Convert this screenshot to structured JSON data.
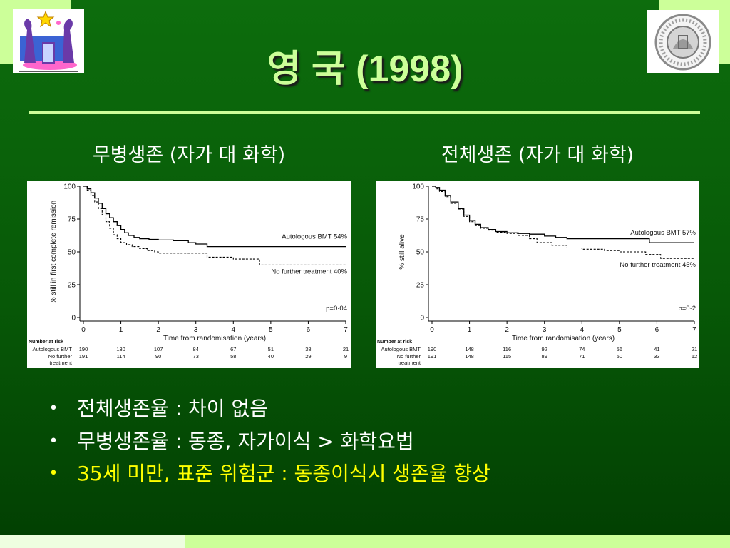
{
  "slide": {
    "title": "영 국 (1998)",
    "bullet_glyph": "•",
    "bullets": [
      {
        "text": "전체생존율 : 차이 없음",
        "color": "#ffffff"
      },
      {
        "text": "무병생존율 : 동종, 자가이식 > 화학요법",
        "color": "#ffffff"
      },
      {
        "text": "35세 미만, 표준 위험군 : 동종이식시 생존율 향상",
        "color": "#ffff00"
      }
    ]
  },
  "colors": {
    "accent": "#ccff99",
    "highlight": "#ffff00",
    "text": "#ffffff",
    "background_top": "#0d6d0d",
    "background_bottom": "#023f02"
  },
  "logos": {
    "left_icon": "mascot-logo",
    "right_icon": "circular-seal-logo"
  },
  "chart_data": [
    {
      "type": "line",
      "step": true,
      "grid": false,
      "legend_position": "right",
      "title": "무병생존 (자가 대 화학)",
      "ylabel": "% still in first complete remission",
      "xlabel": "Time from randomisation (years)",
      "xlim": [
        0,
        7
      ],
      "ylim": [
        0,
        100
      ],
      "xticks": [
        0,
        1,
        2,
        3,
        4,
        5,
        6,
        7
      ],
      "yticks": [
        0,
        25,
        50,
        75,
        100
      ],
      "annotation": "p=0·04",
      "series": [
        {
          "name": "Autologous BMT 54%",
          "dashed": false,
          "x": [
            0,
            0.1,
            0.2,
            0.3,
            0.4,
            0.5,
            0.6,
            0.7,
            0.8,
            0.9,
            1.0,
            1.1,
            1.2,
            1.35,
            1.5,
            1.75,
            2.0,
            2.4,
            2.8,
            3.0,
            3.3,
            7
          ],
          "y": [
            100,
            98,
            95,
            91,
            87,
            83,
            79,
            76,
            73,
            70,
            67,
            64.5,
            62.5,
            61,
            60,
            59.5,
            59,
            58.5,
            57,
            56,
            54,
            54
          ]
        },
        {
          "name": "No further treatment 40%",
          "dashed": true,
          "x": [
            0,
            0.1,
            0.2,
            0.3,
            0.4,
            0.5,
            0.6,
            0.7,
            0.8,
            0.9,
            1.0,
            1.15,
            1.3,
            1.5,
            1.7,
            1.9,
            2.0,
            3.3,
            4.0,
            4.7,
            7
          ],
          "y": [
            100,
            97,
            93,
            88,
            83,
            78,
            73,
            68,
            63,
            60,
            57,
            55.5,
            54,
            52.5,
            51,
            50,
            49,
            46,
            44.5,
            40,
            40
          ]
        }
      ],
      "risk_table": {
        "heading": "Number at risk",
        "rows": [
          {
            "label": [
              "Autologous BMT"
            ],
            "values": [
              190,
              130,
              107,
              84,
              67,
              51,
              38,
              21
            ]
          },
          {
            "label": [
              "No further",
              "treatment"
            ],
            "values": [
              191,
              114,
              90,
              73,
              58,
              40,
              29,
              9
            ]
          }
        ]
      }
    },
    {
      "type": "line",
      "step": true,
      "grid": false,
      "legend_position": "right",
      "title": "전체생존 (자가 대 화학)",
      "ylabel": "% still alive",
      "xlabel": "Time from randomisation (years)",
      "xlim": [
        0,
        7
      ],
      "ylim": [
        0,
        100
      ],
      "xticks": [
        0,
        1,
        2,
        3,
        4,
        5,
        6,
        7
      ],
      "yticks": [
        0,
        25,
        50,
        75,
        100
      ],
      "annotation": "p=0·2",
      "series": [
        {
          "name": "Autologous BMT 57%",
          "dashed": false,
          "x": [
            0,
            0.1,
            0.2,
            0.35,
            0.5,
            0.7,
            0.85,
            1.0,
            1.15,
            1.3,
            1.5,
            1.7,
            2.0,
            2.3,
            2.6,
            3.0,
            3.3,
            3.6,
            5.8,
            7
          ],
          "y": [
            100,
            99,
            97,
            93,
            88,
            83,
            78,
            74,
            71,
            68.5,
            67,
            65.5,
            64.5,
            64,
            63.5,
            62,
            61,
            60,
            57,
            57
          ]
        },
        {
          "name": "No further treatment 45%",
          "dashed": true,
          "x": [
            0,
            0.1,
            0.2,
            0.35,
            0.5,
            0.7,
            0.85,
            1.0,
            1.15,
            1.3,
            1.5,
            1.7,
            2.0,
            2.3,
            2.6,
            2.8,
            3.2,
            3.6,
            4.0,
            4.6,
            5.0,
            5.7,
            6.1,
            7
          ],
          "y": [
            100,
            98,
            96,
            92,
            87,
            82,
            77,
            73,
            70,
            68,
            66.5,
            65,
            64,
            62.5,
            60,
            57,
            55,
            53,
            52,
            51,
            50,
            48,
            45,
            45
          ]
        }
      ],
      "risk_table": {
        "heading": "Number at risk",
        "rows": [
          {
            "label": [
              "Autologous BMT"
            ],
            "values": [
              190,
              148,
              116,
              92,
              74,
              56,
              41,
              21
            ]
          },
          {
            "label": [
              "No further",
              "treatment"
            ],
            "values": [
              191,
              148,
              115,
              89,
              71,
              50,
              33,
              12
            ]
          }
        ]
      }
    }
  ]
}
